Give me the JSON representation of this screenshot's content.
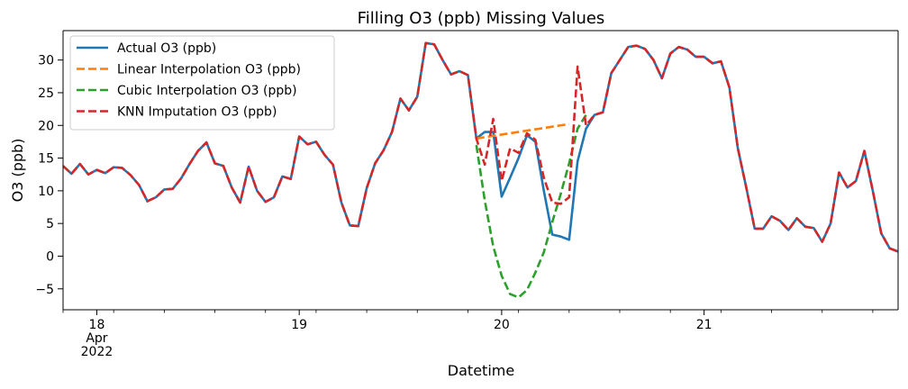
{
  "chart_data": {
    "type": "line",
    "title": "Filling O3 (ppb) Missing Values",
    "xlabel": "Datetime",
    "ylabel": "O3 (ppb)",
    "x_unit": "datetime",
    "x_start": "2022-04-17 20:00",
    "x_step": "1 hour",
    "xlim": [
      "2022-04-17 20:00",
      "2022-04-21 23:00"
    ],
    "ylim": [
      -8.2,
      34.5
    ],
    "x_ticks": [
      {
        "date": "2022-04-18 00:00",
        "label": "18",
        "sublabel_1": "Apr",
        "sublabel_2": "2022"
      },
      {
        "date": "2022-04-19 00:00",
        "label": "19"
      },
      {
        "date": "2022-04-20 00:00",
        "label": "20"
      },
      {
        "date": "2022-04-21 00:00",
        "label": "21"
      }
    ],
    "y_ticks": [
      -5,
      0,
      5,
      10,
      15,
      20,
      25,
      30
    ],
    "y_tick_labels": [
      "−5",
      "0",
      "5",
      "10",
      "15",
      "20",
      "25",
      "30"
    ],
    "grid": false,
    "legend_position": "top-left",
    "series": [
      {
        "name": "Actual O3 (ppb)",
        "color": "#1f77b4",
        "dash": "solid",
        "start_index": 0,
        "values": [
          13.8,
          12.6,
          14.1,
          12.5,
          13.2,
          12.7,
          13.6,
          13.5,
          12.4,
          10.9,
          8.4,
          9.0,
          10.2,
          10.3,
          11.9,
          14.1,
          16.1,
          17.4,
          14.2,
          13.8,
          10.5,
          8.2,
          13.7,
          10.0,
          8.3,
          9.0,
          12.2,
          11.8,
          18.3,
          17.1,
          17.5,
          15.5,
          14.0,
          8.2,
          4.7,
          4.6,
          10.4,
          14.2,
          16.2,
          19.0,
          24.1,
          22.3,
          24.4,
          32.6,
          32.4,
          30.0,
          27.8,
          28.3,
          27.7,
          18.0,
          19.0,
          19.0,
          9.1,
          12.0,
          15.0,
          18.5,
          17.5,
          10.0,
          3.3,
          3.0,
          2.5,
          14.5,
          19.5,
          21.6,
          22.0,
          28.0,
          30.0,
          32.0,
          32.2,
          31.7,
          30.0,
          27.2,
          31.0,
          32.0,
          31.6,
          30.5,
          30.5,
          29.5,
          29.8,
          25.8,
          16.5,
          10.5,
          4.2,
          4.2,
          6.1,
          5.4,
          4.0,
          5.8,
          4.5,
          4.3,
          2.2,
          5.0,
          12.8,
          10.5,
          11.5,
          16.1,
          10.0,
          3.5,
          1.2,
          0.7
        ]
      },
      {
        "name": "Linear Interpolation O3 (ppb)",
        "color": "#ff7f0e",
        "dash": "dashed",
        "start_index": 49,
        "values": [
          18.0,
          18.2,
          18.4,
          18.6,
          18.8,
          19.0,
          19.2,
          19.4,
          19.6,
          19.8,
          20.0,
          20.2
        ]
      },
      {
        "name": "Cubic Interpolation O3 (ppb)",
        "color": "#2ca02c",
        "dash": "dashed",
        "start_index": 49,
        "values": [
          17.0,
          8.5,
          1.5,
          -3.0,
          -5.8,
          -6.3,
          -5.2,
          -2.5,
          0.6,
          5.2,
          9.5,
          14.2,
          19.5,
          21.6
        ]
      },
      {
        "name": "KNN Imputation O3 (ppb)",
        "color": "#d62728",
        "dash": "dashed",
        "start_index": 0,
        "values": [
          13.8,
          12.6,
          14.1,
          12.5,
          13.2,
          12.7,
          13.6,
          13.5,
          12.4,
          10.9,
          8.4,
          9.0,
          10.2,
          10.3,
          11.9,
          14.1,
          16.1,
          17.4,
          14.2,
          13.8,
          10.5,
          8.2,
          13.7,
          10.0,
          8.3,
          9.0,
          12.2,
          11.8,
          18.3,
          17.1,
          17.5,
          15.5,
          14.0,
          8.2,
          4.7,
          4.6,
          10.4,
          14.2,
          16.2,
          19.0,
          24.1,
          22.3,
          24.4,
          32.6,
          32.4,
          30.0,
          27.8,
          28.3,
          27.7,
          18.0,
          14.0,
          21.0,
          11.5,
          16.5,
          15.8,
          18.8,
          17.8,
          12.0,
          8.2,
          8.0,
          9.0,
          29.0,
          20.0,
          21.6,
          22.0,
          28.0,
          30.0,
          32.0,
          32.2,
          31.7,
          30.0,
          27.2,
          31.0,
          32.0,
          31.6,
          30.5,
          30.5,
          29.5,
          29.8,
          25.8,
          16.5,
          10.5,
          4.2,
          4.2,
          6.1,
          5.4,
          4.0,
          5.8,
          4.5,
          4.3,
          2.2,
          5.0,
          12.8,
          10.5,
          11.5,
          16.1,
          10.0,
          3.5,
          1.2,
          0.7
        ]
      }
    ]
  }
}
